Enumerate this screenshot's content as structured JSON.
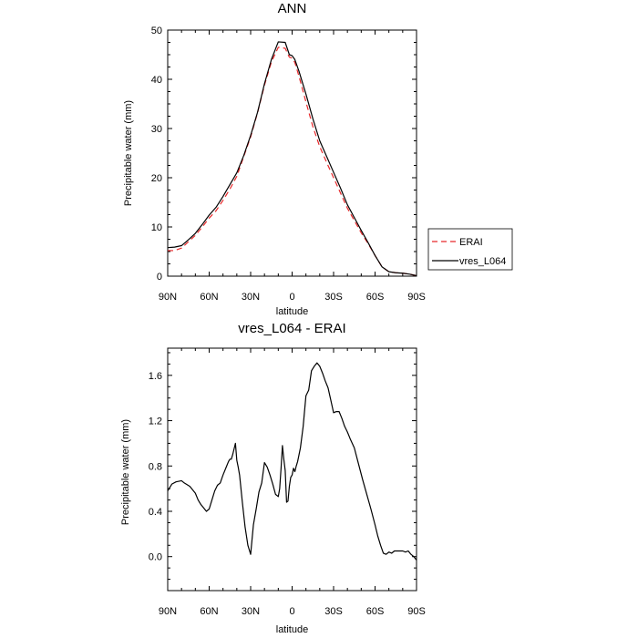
{
  "chart_data": [
    {
      "type": "line",
      "title": "ANN",
      "xlabel": "latitude",
      "ylabel": "Precipitable water (mm)",
      "xlim": [
        90,
        -90
      ],
      "ylim": [
        0,
        50
      ],
      "x_ticks": [
        90,
        60,
        30,
        0,
        -30,
        -60,
        -90
      ],
      "x_tick_labels": [
        "90N",
        "60N",
        "30N",
        "0",
        "30S",
        "60S",
        "90S"
      ],
      "y_ticks": [
        0,
        10,
        20,
        30,
        40,
        50
      ],
      "y_tick_labels": [
        "0",
        "10",
        "20",
        "30",
        "40",
        "50"
      ],
      "grid": false,
      "legend_position": "right",
      "series": [
        {
          "name": "ERAI",
          "color": "#e8282a",
          "dash": "dashed",
          "x": [
            90,
            85,
            80,
            75,
            70,
            65,
            60,
            55,
            50,
            45,
            40,
            35,
            30,
            25,
            20,
            15,
            10,
            5,
            2,
            0,
            -2,
            -5,
            -10,
            -15,
            -20,
            -25,
            -30,
            -35,
            -40,
            -45,
            -50,
            -55,
            -60,
            -65,
            -70,
            -75,
            -80,
            -85,
            -90
          ],
          "y": [
            5.2,
            5.2,
            5.7,
            7.0,
            8.3,
            10.0,
            11.8,
            13.3,
            15.4,
            17.7,
            20.3,
            24.3,
            28.3,
            33.2,
            38.8,
            43.5,
            46.5,
            46.3,
            44.5,
            44.3,
            43.4,
            40.6,
            35.4,
            30.4,
            26.3,
            23.1,
            20.0,
            16.9,
            13.8,
            11.3,
            8.8,
            6.6,
            4.2,
            1.9,
            0.9,
            0.7,
            0.6,
            0.4,
            0.1
          ]
        },
        {
          "name": "vres_L064",
          "color": "#000000",
          "dash": "solid",
          "x": [
            90,
            85,
            80,
            75,
            70,
            65,
            60,
            55,
            50,
            45,
            40,
            35,
            30,
            25,
            20,
            15,
            10,
            5,
            2,
            0,
            -2,
            -5,
            -10,
            -15,
            -20,
            -25,
            -30,
            -35,
            -40,
            -45,
            -50,
            -55,
            -60,
            -65,
            -70,
            -75,
            -80,
            -85,
            -90
          ],
          "y": [
            5.8,
            5.9,
            6.2,
            7.4,
            8.7,
            10.5,
            12.4,
            14.0,
            16.2,
            18.6,
            21.0,
            24.5,
            28.6,
            33.3,
            39.1,
            44.0,
            47.6,
            47.5,
            45.0,
            44.8,
            44.0,
            41.6,
            37.0,
            32.0,
            27.5,
            24.3,
            21.1,
            17.9,
            14.5,
            11.9,
            9.3,
            6.8,
            4.2,
            1.9,
            0.9,
            0.7,
            0.6,
            0.4,
            0.1
          ]
        }
      ]
    },
    {
      "type": "line",
      "title": "vres_L064 - ERAI",
      "xlabel": "latitude",
      "ylabel": "Precipitable water (mm)",
      "xlim": [
        90,
        -90
      ],
      "ylim": [
        -0.3,
        1.84
      ],
      "x_ticks": [
        90,
        60,
        30,
        0,
        -30,
        -60,
        -90
      ],
      "x_tick_labels": [
        "90N",
        "60N",
        "30N",
        "0",
        "30S",
        "60S",
        "90S"
      ],
      "y_ticks": [
        0.0,
        0.4,
        0.8,
        1.2,
        1.6
      ],
      "y_tick_labels": [
        "0.0",
        "0.4",
        "0.8",
        "1.2",
        "1.6"
      ],
      "grid": false,
      "series": [
        {
          "color": "#000000",
          "dash": "solid",
          "x": [
            90,
            87,
            84,
            80,
            78,
            74,
            70,
            68,
            66,
            64,
            62,
            60,
            58,
            56,
            54,
            52,
            50,
            48,
            46,
            45,
            44,
            43,
            42,
            41,
            40,
            39,
            38,
            36,
            34,
            33,
            32,
            31,
            30,
            28,
            26,
            24,
            22,
            20,
            18,
            16,
            14,
            12,
            10,
            9,
            8,
            7,
            6,
            5,
            4,
            3,
            2,
            1,
            0,
            -1,
            -2,
            -3,
            -4,
            -5,
            -6,
            -8,
            -10,
            -12,
            -14,
            -16,
            -18,
            -20,
            -22,
            -24,
            -26,
            -28,
            -30,
            -32,
            -34,
            -36,
            -38,
            -40,
            -42,
            -45,
            -48,
            -51,
            -54,
            -57,
            -60,
            -62,
            -64,
            -66,
            -68,
            -70,
            -72,
            -74,
            -76,
            -78,
            -80,
            -82,
            -84,
            -86,
            -88,
            -90
          ],
          "y": [
            0.58,
            0.64,
            0.66,
            0.67,
            0.65,
            0.62,
            0.56,
            0.5,
            0.46,
            0.43,
            0.4,
            0.42,
            0.5,
            0.58,
            0.63,
            0.65,
            0.72,
            0.78,
            0.84,
            0.86,
            0.86,
            0.9,
            0.95,
            1.0,
            0.85,
            0.79,
            0.72,
            0.48,
            0.26,
            0.18,
            0.1,
            0.06,
            0.02,
            0.28,
            0.42,
            0.57,
            0.65,
            0.83,
            0.79,
            0.72,
            0.64,
            0.55,
            0.53,
            0.6,
            0.78,
            0.98,
            0.86,
            0.76,
            0.48,
            0.49,
            0.62,
            0.7,
            0.72,
            0.78,
            0.75,
            0.8,
            0.84,
            0.9,
            0.96,
            1.15,
            1.42,
            1.47,
            1.64,
            1.68,
            1.71,
            1.68,
            1.62,
            1.55,
            1.49,
            1.38,
            1.27,
            1.28,
            1.28,
            1.22,
            1.15,
            1.1,
            1.04,
            0.96,
            0.82,
            0.68,
            0.55,
            0.42,
            0.28,
            0.18,
            0.1,
            0.03,
            0.02,
            0.04,
            0.03,
            0.05,
            0.05,
            0.05,
            0.05,
            0.04,
            0.05,
            0.02,
            0.0,
            -0.03
          ]
        }
      ]
    }
  ]
}
